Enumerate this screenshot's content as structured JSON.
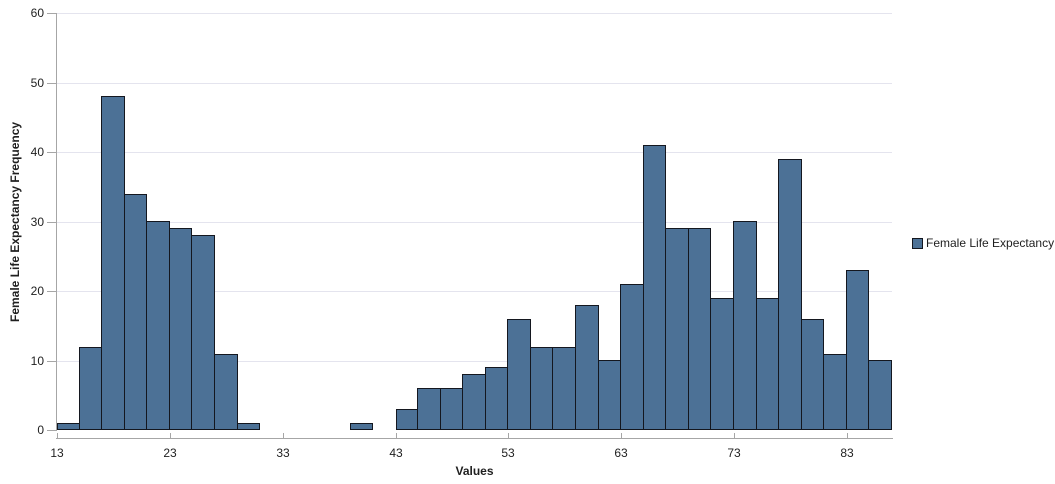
{
  "y_axis": {
    "title": "Female Life Expectancy Frequency",
    "ticks": [
      0,
      10,
      20,
      30,
      40,
      50,
      60
    ],
    "min": 0,
    "max": 60
  },
  "x_axis": {
    "title": "Values",
    "ticks": [
      13,
      23,
      33,
      43,
      53,
      63,
      73,
      83
    ],
    "min": 13,
    "max": 87
  },
  "legend": {
    "label": "Female Life Expectancy",
    "position": "right"
  },
  "colors": {
    "bar_fill": "#4c7196",
    "bar_border": "#14171f",
    "gridline": "#e4e4ee",
    "axis_line": "#a6a6a6",
    "text": "#1f1f1f",
    "background": "#ffffff"
  },
  "chart_data": {
    "type": "bar",
    "subtype": "histogram",
    "title": "",
    "xlabel": "Values",
    "ylabel": "Female Life Expectancy Frequency",
    "xlim": [
      13,
      87
    ],
    "ylim": [
      0,
      60
    ],
    "x_ticks": [
      13,
      23,
      33,
      43,
      53,
      63,
      73,
      83
    ],
    "y_ticks": [
      0,
      10,
      20,
      30,
      40,
      50,
      60
    ],
    "grid": true,
    "legend_position": "right",
    "bin_width": 2,
    "bin_starts": [
      13,
      15,
      17,
      19,
      21,
      23,
      25,
      27,
      29,
      31,
      33,
      35,
      37,
      39,
      41,
      43,
      45,
      47,
      49,
      51,
      53,
      55,
      57,
      59,
      61,
      63,
      65,
      67,
      69,
      71,
      73,
      75,
      77,
      79,
      81,
      83,
      85
    ],
    "values": [
      1,
      12,
      48,
      34,
      30,
      29,
      28,
      11,
      1,
      0,
      0,
      0,
      0,
      1,
      0,
      3,
      6,
      6,
      8,
      9,
      16,
      12,
      12,
      18,
      10,
      21,
      41,
      29,
      29,
      19,
      30,
      19,
      39,
      16,
      11,
      23,
      10
    ],
    "series": [
      {
        "name": "Female Life Expectancy",
        "color": "#4c7196"
      }
    ]
  }
}
